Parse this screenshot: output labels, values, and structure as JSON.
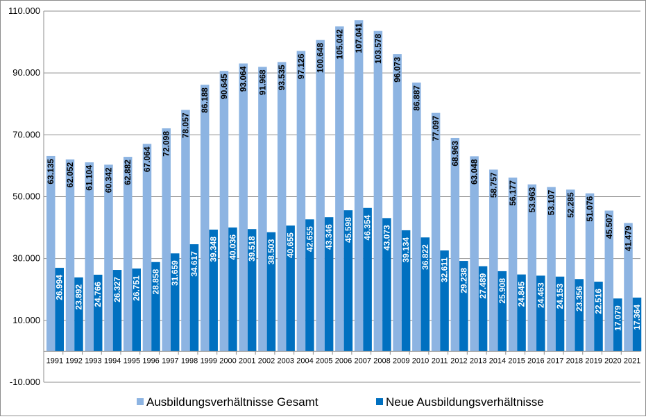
{
  "chart_data": {
    "type": "bar",
    "categories": [
      "1991",
      "1992",
      "1993",
      "1994",
      "1995",
      "1996",
      "1997",
      "1998",
      "1999",
      "2000",
      "2001",
      "2002",
      "2003",
      "2004",
      "2005",
      "2006",
      "2007",
      "2008",
      "2009",
      "2010",
      "2011",
      "2012",
      "2013",
      "2014",
      "2015",
      "2016",
      "2017",
      "2018",
      "2019",
      "2020",
      "2021"
    ],
    "series": [
      {
        "name": "Ausbildungsverhältnisse Gesamt",
        "color": "#8DB4E2",
        "values": [
          63135,
          62052,
          61104,
          60342,
          62882,
          67064,
          72098,
          78057,
          86188,
          90645,
          93064,
          91968,
          93535,
          97126,
          100648,
          105042,
          107041,
          103578,
          96073,
          86887,
          77097,
          68963,
          63048,
          58757,
          56177,
          53963,
          53107,
          52285,
          51076,
          45507,
          41479
        ],
        "labels": [
          "63.135",
          "62.052",
          "61.104",
          "60.342",
          "62.882",
          "67.064",
          "72.098",
          "78.057",
          "86.188",
          "90.645",
          "93.064",
          "91.968",
          "93.535",
          "97.126",
          "100.648",
          "105.042",
          "107.041",
          "103.578",
          "96.073",
          "86.887",
          "77.097",
          "68.963",
          "63.048",
          "58.757",
          "56.177",
          "53.963",
          "53.107",
          "52.285",
          "51.076",
          "45.507",
          "41.479"
        ]
      },
      {
        "name": "Neue Ausbildungsverhältnisse",
        "color": "#0070C0",
        "values": [
          26994,
          23892,
          24766,
          26327,
          26751,
          28858,
          31659,
          34617,
          39348,
          40036,
          39518,
          38503,
          40655,
          42655,
          43346,
          45598,
          46354,
          43073,
          39134,
          36822,
          32611,
          29238,
          27489,
          25908,
          24845,
          24463,
          24153,
          23356,
          22516,
          17079,
          17364
        ],
        "labels": [
          "26.994",
          "23.892",
          "24.766",
          "26.327",
          "26.751",
          "28.858",
          "31.659",
          "34.617",
          "39.348",
          "40.036",
          "39.518",
          "38.503",
          "40.655",
          "42.655",
          "43.346",
          "45.598",
          "46.354",
          "43.073",
          "39.134",
          "36.822",
          "32.611",
          "29.238",
          "27.489",
          "25.908",
          "24.845",
          "24.463",
          "24.153",
          "23.356",
          "22.516",
          "17.079",
          "17.364"
        ]
      }
    ],
    "yticks": [
      -10000,
      10000,
      30000,
      50000,
      70000,
      90000,
      110000
    ],
    "ytick_labels": [
      "-10.000",
      "10.000",
      "30.000",
      "50.000",
      "70.000",
      "90.000",
      "110.000"
    ],
    "ylim": [
      -10000,
      110000
    ],
    "baseline": 0,
    "grid": true,
    "legend_position": "bottom",
    "title": "",
    "xlabel": "",
    "ylabel": ""
  }
}
